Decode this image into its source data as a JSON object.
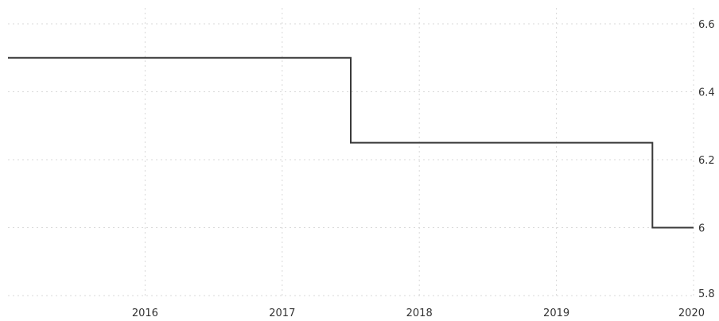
{
  "chart_data": {
    "type": "line",
    "step": true,
    "title": "",
    "xlabel": "",
    "ylabel": "",
    "x_ticks": [
      "2016",
      "2017",
      "2018",
      "2019",
      "2020"
    ],
    "y_ticks": [
      "6.6",
      "6.4",
      "6.2",
      "6",
      "5.8"
    ],
    "ylim": [
      5.8,
      6.6
    ],
    "xlim": [
      2015.0,
      2020.0
    ],
    "y_axis_side": "right",
    "grid": true,
    "legend": "none",
    "series": [
      {
        "points": [
          {
            "x": 2015.0,
            "y": 6.5
          },
          {
            "x": 2017.5,
            "y": 6.5
          },
          {
            "x": 2017.5,
            "y": 6.25
          },
          {
            "x": 2019.7,
            "y": 6.25
          },
          {
            "x": 2019.7,
            "y": 6.0
          },
          {
            "x": 2020.0,
            "y": 6.0
          }
        ],
        "color": "#3a3a3a"
      }
    ]
  }
}
